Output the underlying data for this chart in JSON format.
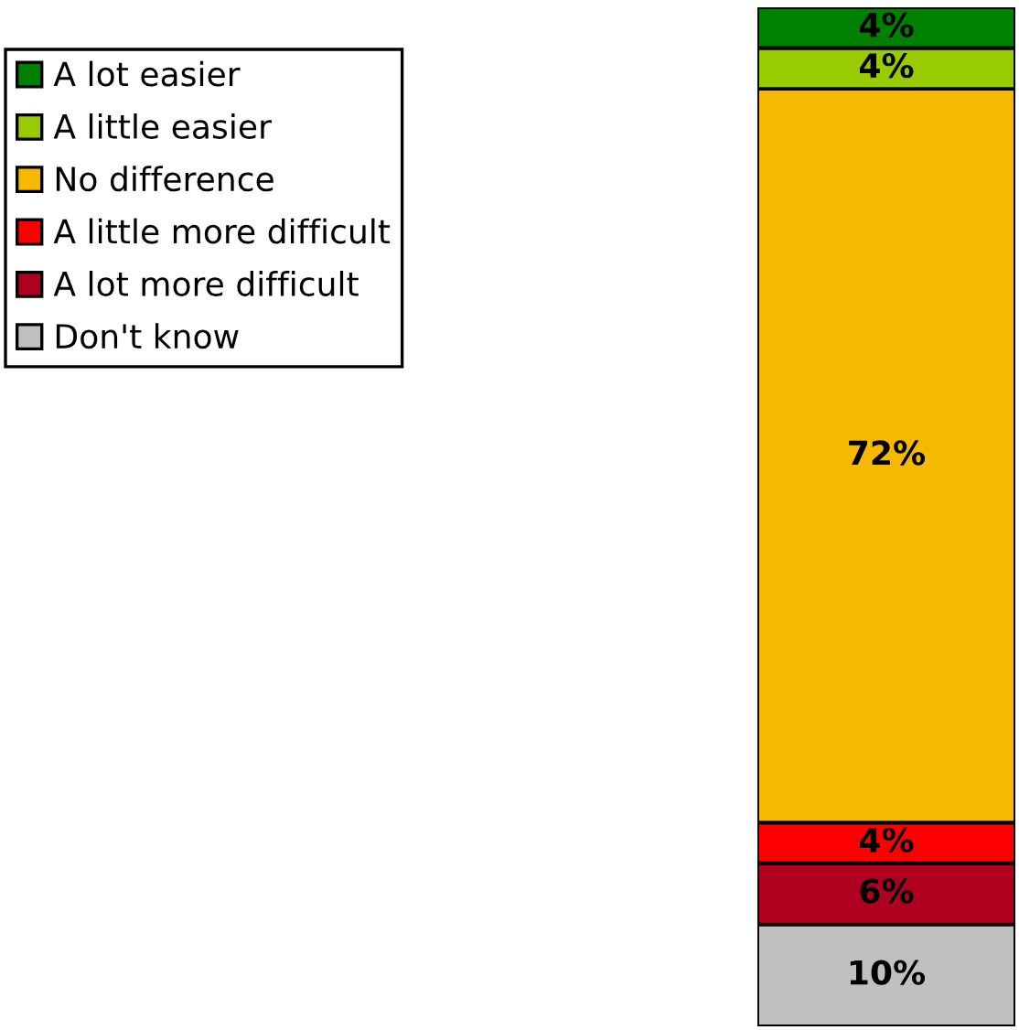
{
  "chart_data": {
    "type": "bar",
    "stacked": true,
    "categories": [
      null
    ],
    "ylim": [
      0,
      100
    ],
    "tick_labels": false,
    "legend": "top left",
    "series": [
      {
        "name": "Don't know",
        "color": "#c0c0c0",
        "values": [
          10
        ],
        "value_labels": [
          "10%"
        ]
      },
      {
        "name": "A lot more difficult",
        "color": "#b00020",
        "values": [
          6
        ],
        "value_labels": [
          "6%"
        ]
      },
      {
        "name": "A little more difficult",
        "color": "#ff0000",
        "values": [
          4
        ],
        "value_labels": [
          "4%"
        ]
      },
      {
        "name": "No difference",
        "color": "#f7b800",
        "values": [
          72
        ],
        "value_labels": [
          "72%"
        ]
      },
      {
        "name": "A little easier",
        "color": "#99cc00",
        "values": [
          4
        ],
        "value_labels": [
          "4%"
        ]
      },
      {
        "name": "A lot easier",
        "color": "#008000",
        "values": [
          4
        ],
        "value_labels": [
          "4%"
        ]
      }
    ]
  }
}
